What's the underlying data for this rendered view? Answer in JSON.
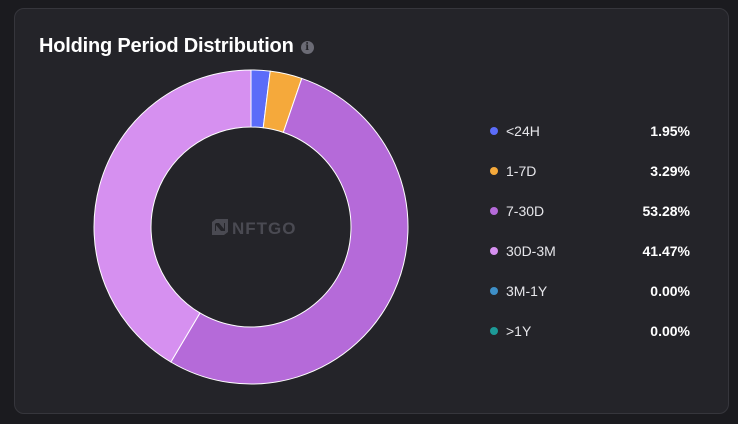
{
  "header": {
    "title": "Holding Period Distribution",
    "info_icon": "info-icon"
  },
  "watermark": {
    "text": "NFTGO",
    "icon": "nftgo-logo-icon"
  },
  "colors": {
    "background": "#1b1b1f",
    "card": "#242429"
  },
  "chart_data": {
    "type": "pie",
    "title": "Holding Period Distribution",
    "donut": true,
    "legend_position": "right",
    "categories": [
      "<24H",
      "1-7D",
      "7-30D",
      "30D-3M",
      "3M-1Y",
      ">1Y"
    ],
    "values": [
      1.95,
      3.29,
      53.28,
      41.47,
      0.0,
      0.0
    ],
    "labels": [
      "1.95%",
      "3.29%",
      "53.28%",
      "41.47%",
      "0.00%",
      "0.00%"
    ],
    "colors": [
      "#5b6cf9",
      "#f5a93b",
      "#b56ad9",
      "#d690f0",
      "#3e8fc7",
      "#1d9a97"
    ]
  }
}
